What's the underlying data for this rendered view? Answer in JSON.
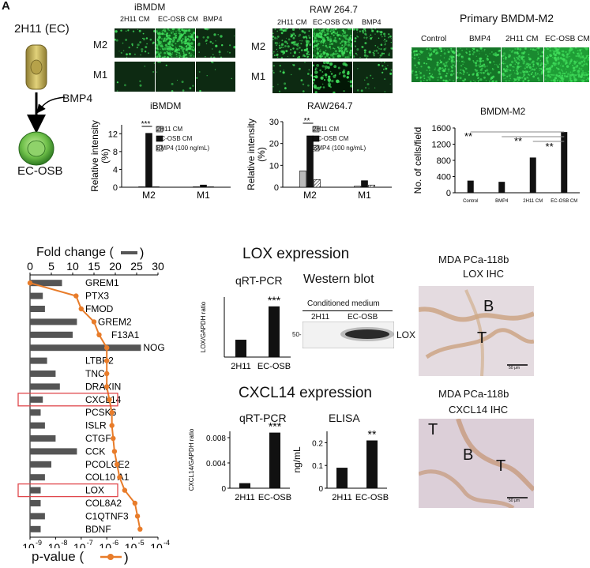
{
  "panel_label": "A",
  "schematic": {
    "cell_top": "2H11 (EC)",
    "arrow_label": "BMP4",
    "cell_bottom": "EC-OSB"
  },
  "micro_ibmdm": {
    "title": "iBMDM",
    "cols": [
      "2H11 CM",
      "EC-OSB CM",
      "BMP4"
    ],
    "rows": [
      "M2",
      "M1"
    ]
  },
  "micro_raw": {
    "title": "RAW 264.7",
    "cols": [
      "2H11 CM",
      "EC-OSB CM",
      "BMP4"
    ],
    "rows": [
      "M2",
      "M1"
    ]
  },
  "micro_bmdm": {
    "title": "Primary BMDM-M2",
    "cols": [
      "Control",
      "BMP4",
      "2H11 CM",
      "EC-OSB CM"
    ]
  },
  "colors": {
    "orange": "#e87c2a",
    "bar_dark": "#111111",
    "bar_grey": "#555555",
    "bar_light": "#bbbbbb",
    "red": "#e0474c",
    "fluor_green": "#3fdc5a"
  },
  "chart_data": [
    {
      "id": "ibmdm",
      "type": "bar",
      "title": "iBMDM",
      "ylabel": "Relative intensity (%)",
      "categories": [
        "M2",
        "M1"
      ],
      "ylim": [
        0,
        14
      ],
      "yticks": [
        "0",
        "4",
        "8",
        "12"
      ],
      "series": [
        {
          "name": "2H11 CM",
          "values": [
            0.1,
            0.1
          ]
        },
        {
          "name": "EC-OSB CM",
          "values": [
            12.1,
            0.5
          ]
        },
        {
          "name": "BMP4 (100 ng/mL)",
          "values": [
            0.1,
            0.1
          ]
        }
      ],
      "annotation": "***"
    },
    {
      "id": "raw",
      "type": "bar",
      "title": "RAW264.7",
      "ylabel": "Relative intensity (%)",
      "categories": [
        "M2",
        "M1"
      ],
      "ylim": [
        0,
        30
      ],
      "yticks": [
        "0",
        "10",
        "20",
        "30"
      ],
      "series": [
        {
          "name": "2H11 CM",
          "values": [
            7.5,
            0.5
          ]
        },
        {
          "name": "EC-OSB CM",
          "values": [
            23.5,
            3.0
          ]
        },
        {
          "name": "BMP4 (100 ng/mL)",
          "values": [
            3.5,
            1.0
          ]
        }
      ],
      "annotation": "**"
    },
    {
      "id": "bmdm",
      "type": "bar",
      "title": "BMDM-M2",
      "ylabel": "No. of cells/field",
      "categories": [
        "Control",
        "BMP4",
        "2H11 CM",
        "EC-OSB CM"
      ],
      "ylim": [
        0,
        1600
      ],
      "yticks": [
        "0",
        "400",
        "800",
        "1200",
        "1600"
      ],
      "values": [
        300,
        270,
        870,
        1500
      ],
      "annotations": [
        "**",
        "**",
        "**"
      ]
    },
    {
      "id": "fold_pvalue",
      "type": "bar",
      "x_top_label": "Fold change (",
      "x_top_ticks": [
        "0",
        "5",
        "10",
        "15",
        "20",
        "25",
        "30"
      ],
      "x_top_range": [
        0,
        30
      ],
      "x_bottom_label": "p-value (",
      "x_bottom_ticks": [
        "10",
        "10",
        "10",
        "10",
        "10",
        "10"
      ],
      "x_bottom_exponents": [
        "-9",
        "-8",
        "-7",
        "-6",
        "-5",
        "-4"
      ],
      "x_bottom_log_range": [
        -9,
        -4
      ],
      "genes": [
        "GREM1",
        "PTX3",
        "FMOD",
        "GREM2",
        "F13A1",
        "NOG",
        "LTBP2",
        "TNC",
        "DRAXIN",
        "CXCL14",
        "PCSK6",
        "ISLR",
        "CTGF",
        "CCK",
        "PCOLCE2",
        "COL10 A1",
        "LOX",
        "COL8A2",
        "C1QTNF3",
        "BDNF"
      ],
      "fold_change": [
        7.5,
        3,
        3.5,
        11,
        10,
        26,
        4,
        6,
        7,
        3,
        2.5,
        3.5,
        6,
        11,
        5,
        3.5,
        2.5,
        2.5,
        3.5,
        2.5
      ],
      "log10_pvalue": [
        -9.0,
        -7.2,
        -7.0,
        -6.5,
        -6.3,
        -6.0,
        -6.0,
        -6.0,
        -6.0,
        -5.9,
        -5.8,
        -5.8,
        -5.75,
        -5.7,
        -5.6,
        -5.5,
        -5.3,
        -4.9,
        -4.8,
        -4.7
      ],
      "highlighted": [
        "CXCL14",
        "LOX"
      ]
    },
    {
      "id": "lox_qpcr",
      "type": "bar",
      "ylabel": "LOX/GAPDH ratio",
      "categories": [
        "2H11",
        "EC-OSB"
      ],
      "values": [
        0.13,
        0.38
      ],
      "ylim": [
        0,
        0.45
      ],
      "yticks": [],
      "annotation": "***"
    },
    {
      "id": "cxcl14_qpcr",
      "type": "bar",
      "ylabel": "CXCL14/GAPDH ratio",
      "categories": [
        "2H11",
        "EC-OSB"
      ],
      "values": [
        0.0008,
        0.0088
      ],
      "ylim": [
        0,
        0.009
      ],
      "yticks": [
        "0",
        "0.004",
        "0.008"
      ],
      "annotation": "***"
    },
    {
      "id": "cxcl14_elisa",
      "type": "bar",
      "ylabel": "ng/mL",
      "categories": [
        "2H11",
        "EC-OSB"
      ],
      "values": [
        0.09,
        0.21
      ],
      "ylim": [
        0,
        0.25
      ],
      "yticks": [
        "0",
        "0.1",
        "0.2"
      ],
      "annotation": "**"
    }
  ],
  "lox": {
    "heading": "LOX expression",
    "qpcr_title": "qRT-PCR",
    "wb_title": "Western blot",
    "wb_sublabel": "Conditioned medium",
    "wb_lanes": [
      "2H11",
      "EC-OSB"
    ],
    "wb_marker": "50-",
    "wb_band": "LOX"
  },
  "cxcl14": {
    "heading": "CXCL14 expression",
    "qpcr_title": "qRT-PCR",
    "elisa_title": "ELISA"
  },
  "ihc_lox": {
    "title_1": "MDA PCa-118b",
    "title_2": "LOX IHC",
    "labels": [
      "B",
      "T"
    ],
    "scale": "50 μm"
  },
  "ihc_cxcl14": {
    "title_1": "MDA PCa-118b",
    "title_2": "CXCL14 IHC",
    "labels": [
      "T",
      "B",
      "T"
    ],
    "scale": "50 μm"
  }
}
